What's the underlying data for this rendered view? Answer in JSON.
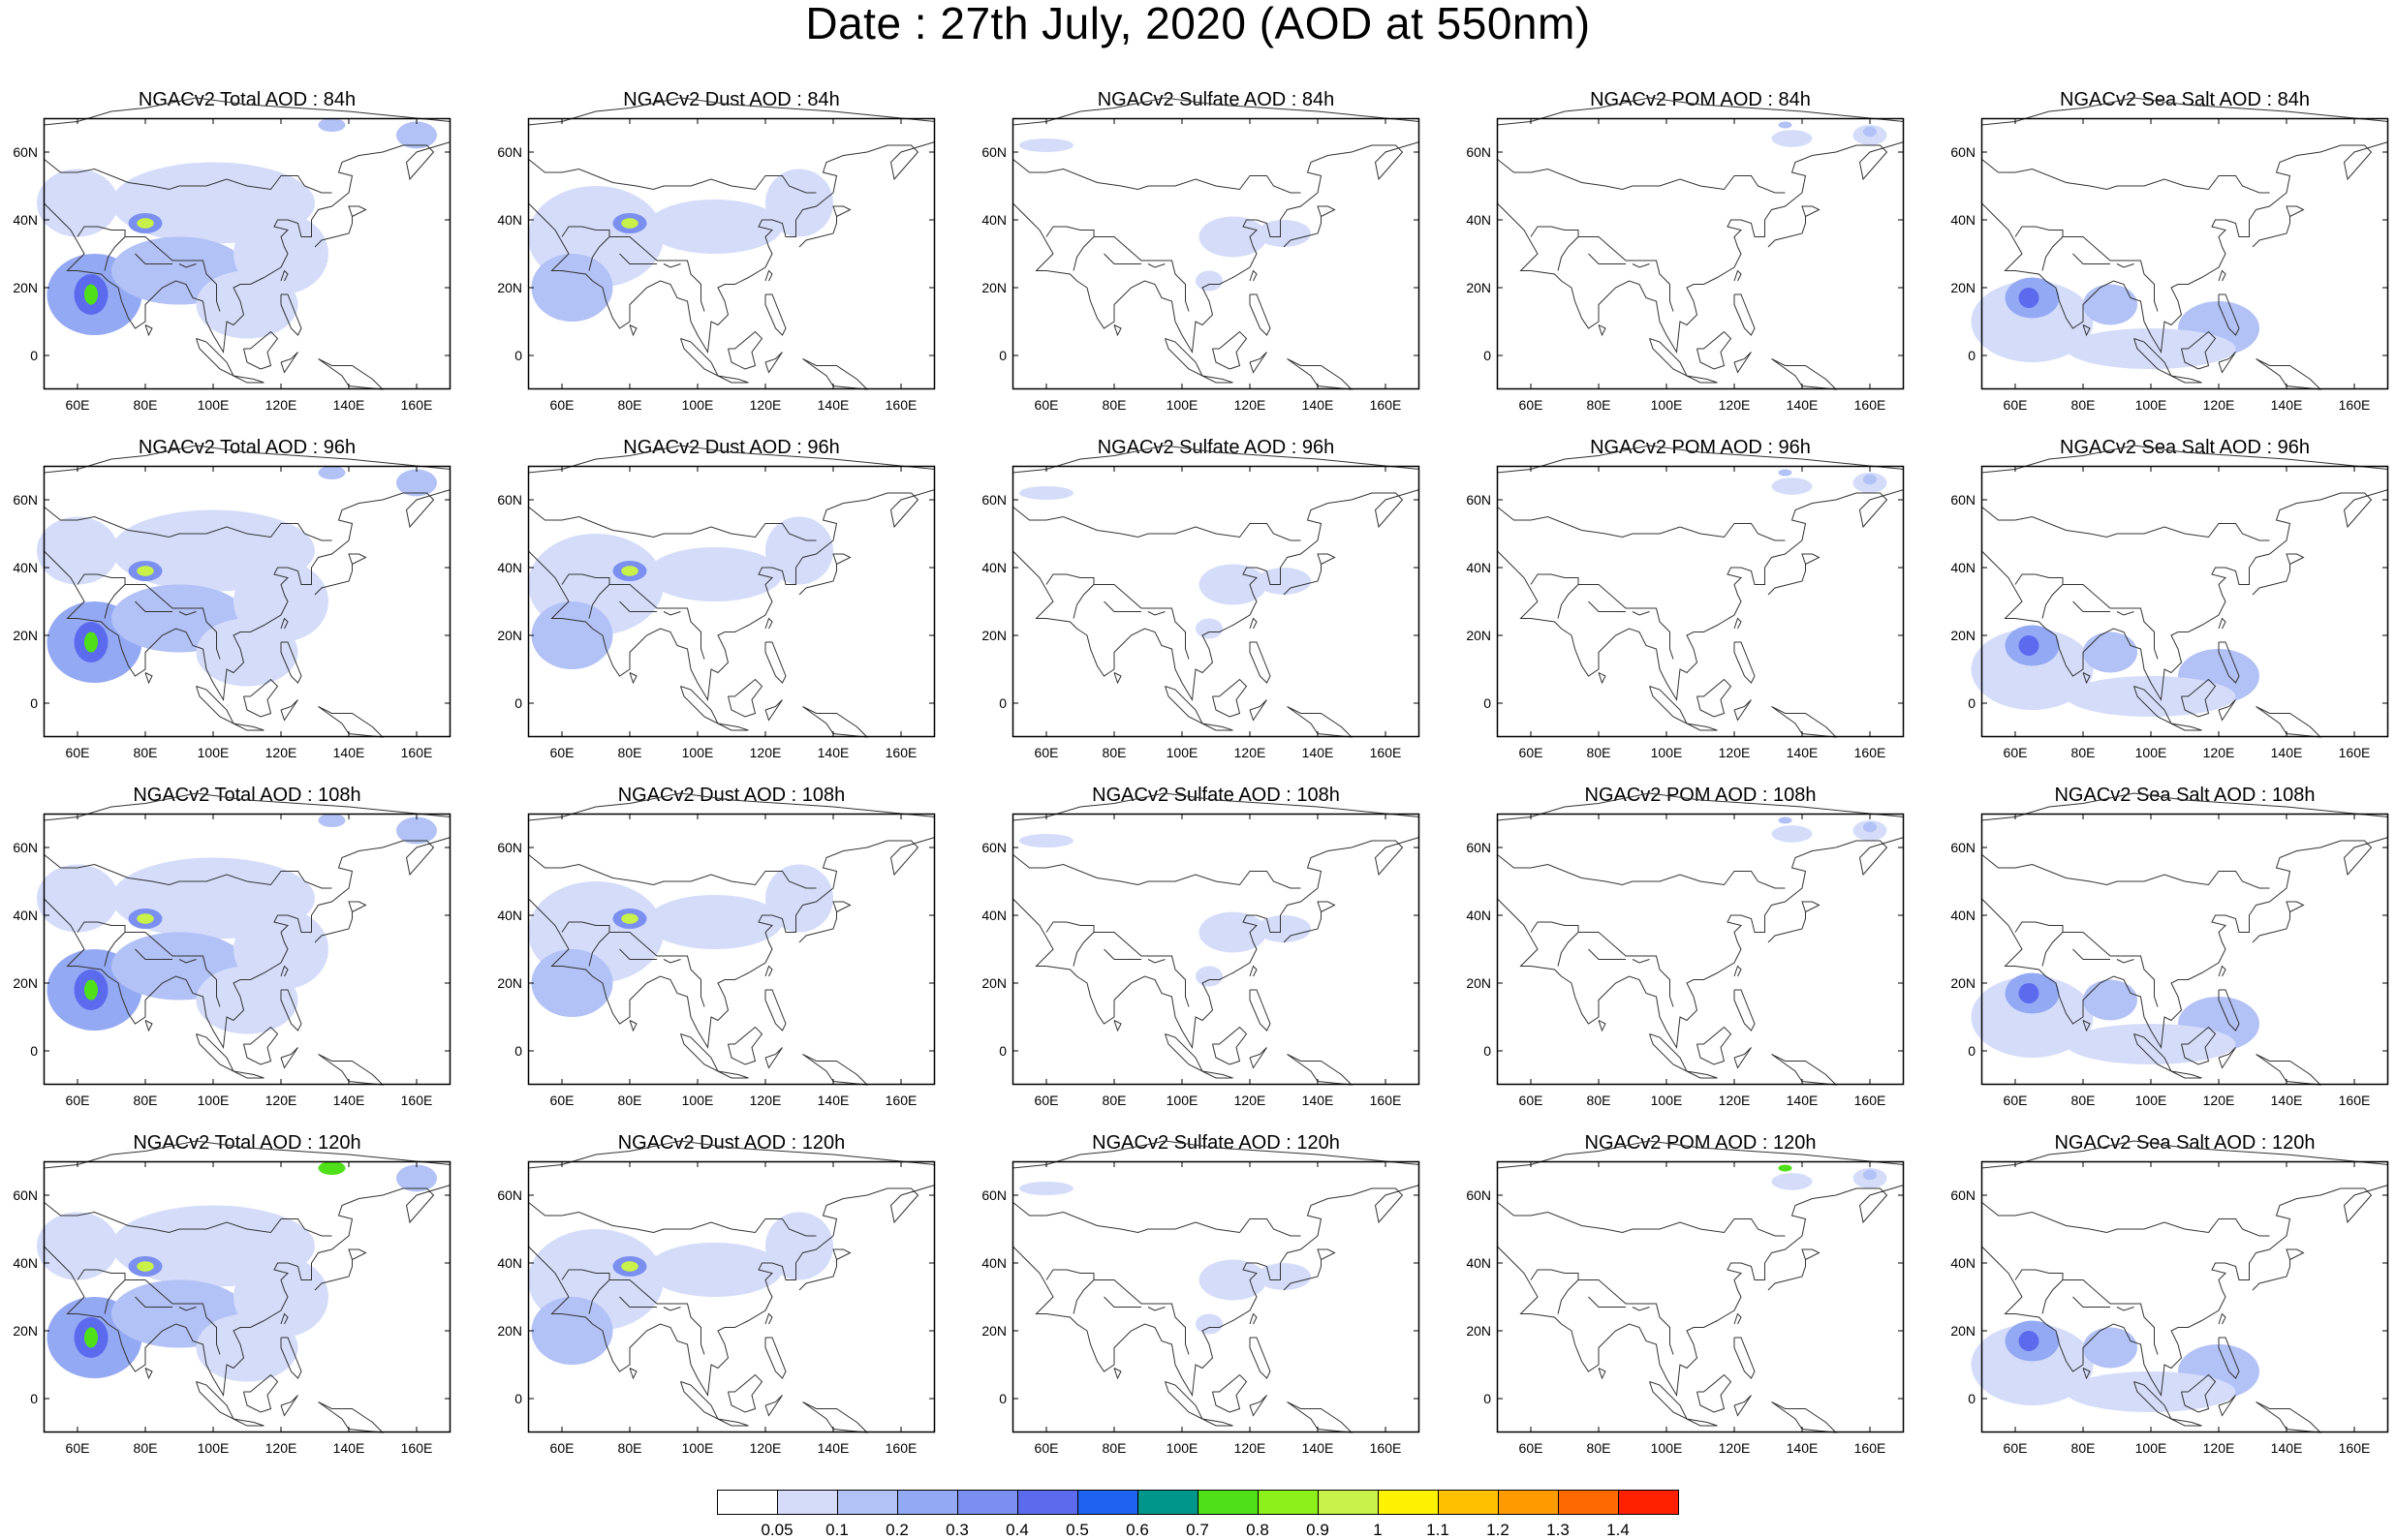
{
  "title": "Date : 27th July, 2020 (AOD at 550nm)",
  "panel_titles": [
    [
      "NGACv2 Total AOD : 84h",
      "NGACv2 Dust AOD : 84h",
      "NGACv2 Sulfate AOD : 84h",
      "NGACv2 POM AOD : 84h",
      "NGACv2 Sea Salt AOD : 84h"
    ],
    [
      "NGACv2 Total AOD : 96h",
      "NGACv2 Dust AOD : 96h",
      "NGACv2 Sulfate AOD : 96h",
      "NGACv2 POM AOD : 96h",
      "NGACv2 Sea Salt AOD : 96h"
    ],
    [
      "NGACv2 Total AOD : 108h",
      "NGACv2 Dust AOD : 108h",
      "NGACv2 Sulfate AOD : 108h",
      "NGACv2 POM AOD : 108h",
      "NGACv2 Sea Salt AOD : 108h"
    ],
    [
      "NGACv2 Total AOD : 120h",
      "NGACv2 Dust AOD : 120h",
      "NGACv2 Sulfate AOD : 120h",
      "NGACv2 POM AOD : 120h",
      "NGACv2 Sea Salt  AOD : 120h"
    ]
  ],
  "axes": {
    "lat_ticks": [
      "60N",
      "40N",
      "20N",
      "0"
    ],
    "lon_ticks": [
      "60E",
      "80E",
      "100E",
      "120E",
      "140E",
      "160E"
    ],
    "lat_range": [
      -10,
      70
    ],
    "lon_range": [
      50,
      170
    ]
  },
  "colorbar": {
    "labels": [
      "0.05",
      "0.1",
      "0.2",
      "0.3",
      "0.4",
      "0.5",
      "0.6",
      "0.7",
      "0.8",
      "0.9",
      "1",
      "1.1",
      "1.2",
      "1.3",
      "1.4"
    ],
    "colors": [
      "#ffffff",
      "#d4dcfa",
      "#b2c1f6",
      "#94a9f3",
      "#7a8ff0",
      "#5c6bee",
      "#1f62f0",
      "#00968c",
      "#4fe01a",
      "#8cf01a",
      "#c8f24a",
      "#fff200",
      "#ffc000",
      "#ff9a00",
      "#ff6a00",
      "#ff2000"
    ]
  }
}
